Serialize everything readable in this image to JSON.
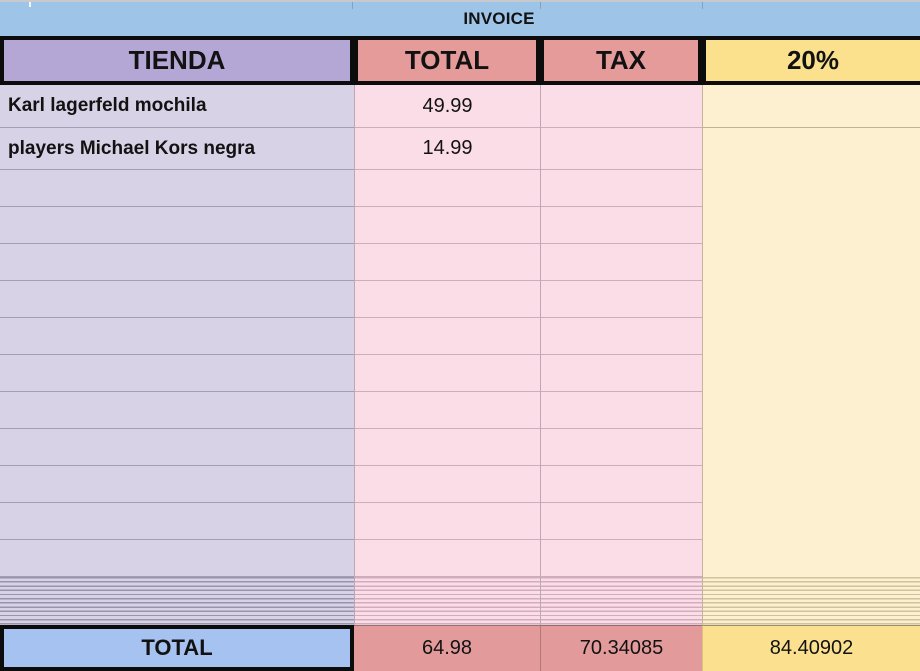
{
  "title": "INVOICE",
  "header": {
    "tienda": "TIENDA",
    "total": "TOTAL",
    "tax": "TAX",
    "pct": "20%"
  },
  "items": [
    {
      "name": "Karl lagerfeld mochila",
      "total": "49.99",
      "tax": "",
      "pct": ""
    },
    {
      "name": "players Michael Kors negra",
      "total": "14.99",
      "tax": "",
      "pct": ""
    }
  ],
  "empty_row_count": 11,
  "footer": {
    "label": "TOTAL",
    "total": "64.98",
    "tax": "70.34085",
    "pct": "84.40902"
  },
  "colors": {
    "topbar_blue": "#9ec5e8",
    "header_purple": "#b4a7d6",
    "header_salmon": "#e69b9b",
    "header_yellow": "#fbe08d",
    "body_lavender": "#d7d2e6",
    "body_pink": "#fbdde8",
    "body_yellow": "#fdf0d0",
    "footer_blue": "#a5c2f0",
    "footer_salmon": "#e29a9b",
    "footer_yellow": "#fbe18f",
    "border_black": "#0c0c0c"
  }
}
